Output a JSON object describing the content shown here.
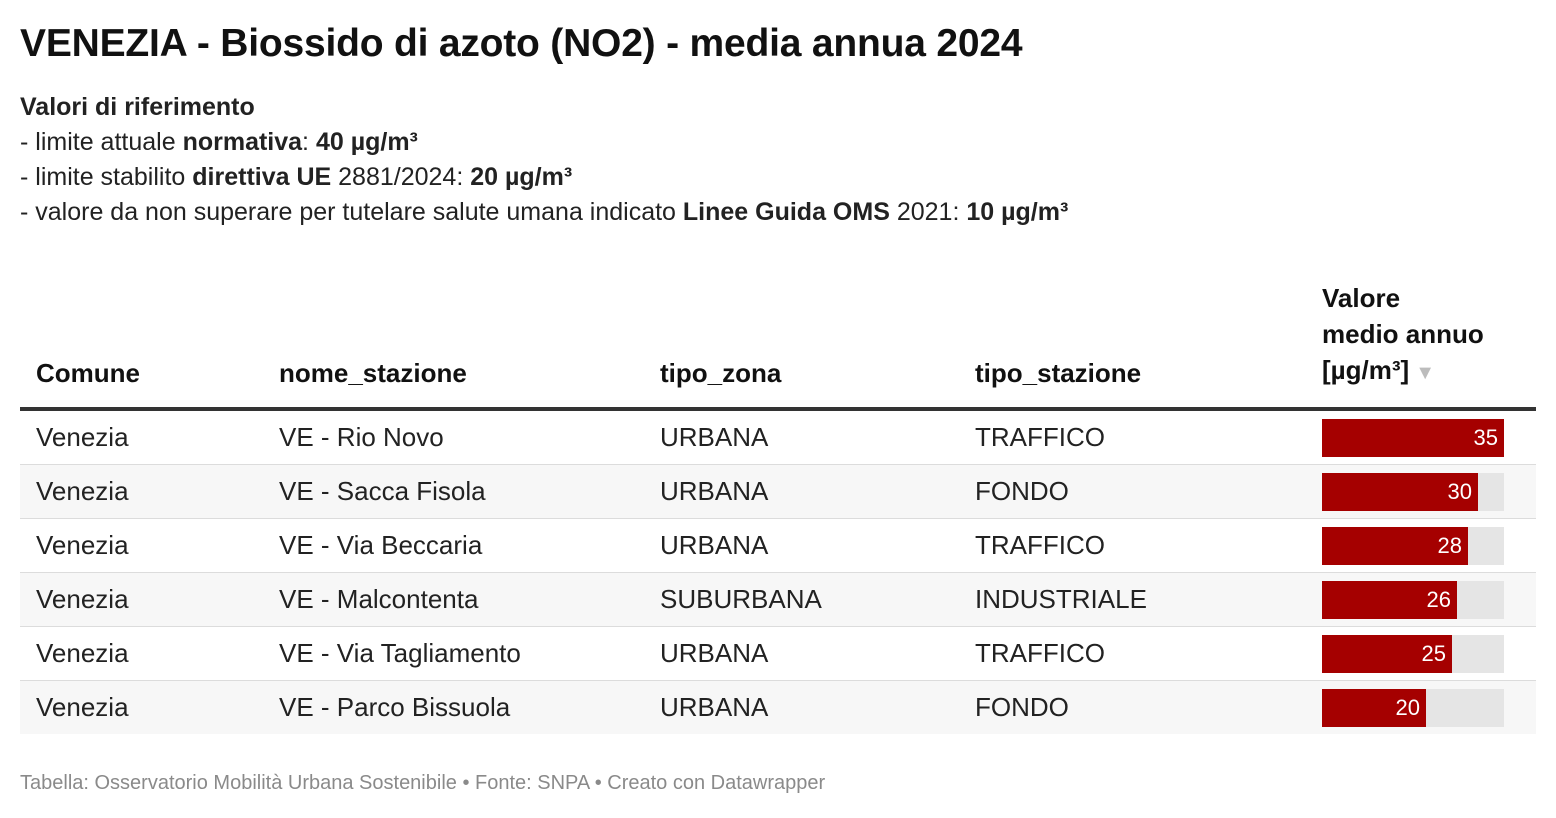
{
  "title": "VENEZIA - Biossido di azoto (NO2) - media annua 2024",
  "notes": {
    "heading": "Valori di riferimento",
    "line1": {
      "prefix": "- limite attuale ",
      "bold1": "normativa",
      "mid": ": ",
      "bold2": "40 µg/m³"
    },
    "line2": {
      "prefix": "- limite stabilito ",
      "bold1": "direttiva UE",
      "mid": " 2881/2024: ",
      "bold2": "20 µg/m³"
    },
    "line3": {
      "prefix": "- valore da non superare per tutelare salute umana indicato ",
      "bold1": "Linee Guida OMS",
      "mid": " 2021: ",
      "bold2": "10 µg/m³"
    }
  },
  "table": {
    "headers": {
      "comune": "Comune",
      "stazione": "nome_stazione",
      "zona": "tipo_zona",
      "tipo": "tipo_stazione",
      "valore_l1": "Valore",
      "valore_l2": "medio annuo",
      "valore_l3": "[µg/m³]"
    },
    "sort_icon": "▼"
  },
  "chart_data": {
    "type": "table",
    "bar_column": "valore",
    "bar_max": 35,
    "colors": {
      "bar": "#a50000",
      "track": "#e5e5e5"
    },
    "columns": [
      "Comune",
      "nome_stazione",
      "tipo_zona",
      "tipo_stazione",
      "Valore medio annuo [µg/m³]"
    ],
    "rows": [
      {
        "comune": "Venezia",
        "stazione": "VE - Rio Novo",
        "zona": "URBANA",
        "tipo": "TRAFFICO",
        "valore": 35
      },
      {
        "comune": "Venezia",
        "stazione": "VE - Sacca Fisola",
        "zona": "URBANA",
        "tipo": "FONDO",
        "valore": 30
      },
      {
        "comune": "Venezia",
        "stazione": "VE - Via Beccaria",
        "zona": "URBANA",
        "tipo": "TRAFFICO",
        "valore": 28
      },
      {
        "comune": "Venezia",
        "stazione": "VE - Malcontenta",
        "zona": "SUBURBANA",
        "tipo": "INDUSTRIALE",
        "valore": 26
      },
      {
        "comune": "Venezia",
        "stazione": "VE - Via Tagliamento",
        "zona": "URBANA",
        "tipo": "TRAFFICO",
        "valore": 25
      },
      {
        "comune": "Venezia",
        "stazione": "VE - Parco Bissuola",
        "zona": "URBANA",
        "tipo": "FONDO",
        "valore": 20
      }
    ]
  },
  "footer": "Tabella: Osservatorio Mobilità Urbana Sostenibile • Fonte: SNPA • Creato con Datawrapper"
}
